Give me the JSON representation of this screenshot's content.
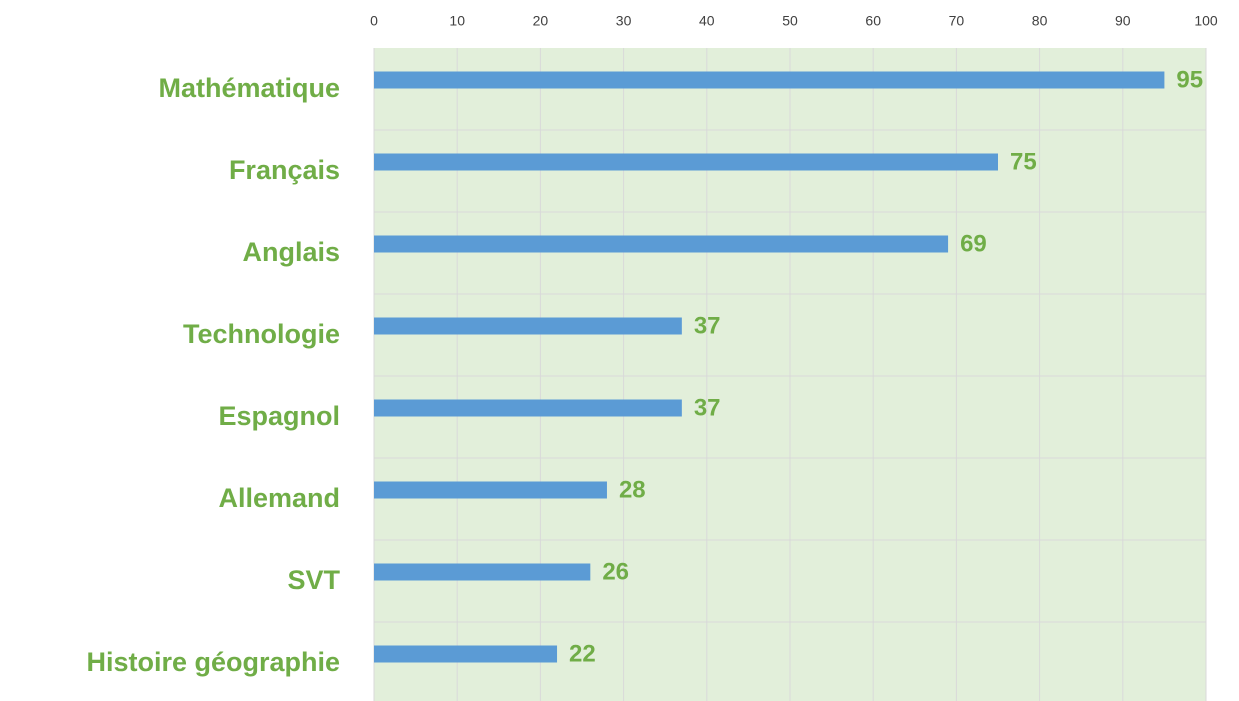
{
  "chart_data": {
    "type": "bar",
    "orientation": "horizontal",
    "categories": [
      "Mathématique",
      "Français",
      "Anglais",
      "Technologie",
      "Espagnol",
      "Allemand",
      "SVT",
      "Histoire géographie"
    ],
    "values": [
      95,
      75,
      69,
      37,
      37,
      28,
      26,
      22
    ],
    "color": "#5b9bd5",
    "xlim": [
      0,
      100
    ],
    "xticks": [
      0,
      10,
      20,
      30,
      40,
      50,
      60,
      70,
      80,
      90,
      100
    ],
    "grid": true
  }
}
